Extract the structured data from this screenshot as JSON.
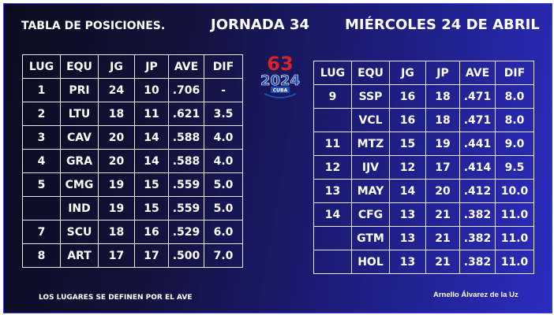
{
  "header": {
    "title": "TABLA DE POSICIONES.",
    "round": "JORNADA  34",
    "date": "MIÉRCOLES  24  DE ABRIL"
  },
  "logo": {
    "number": "63",
    "year": "2024",
    "country": "CUBA"
  },
  "columns": [
    "LUG",
    "EQU",
    "JG",
    "JP",
    "AVE",
    "DIF"
  ],
  "left_table": {
    "rows": [
      {
        "lug": "1",
        "equ": "PRI",
        "jg": "24",
        "jp": "10",
        "ave": ".706",
        "dif": "-"
      },
      {
        "lug": "2",
        "equ": "LTU",
        "jg": "18",
        "jp": "11",
        "ave": ".621",
        "dif": "3.5"
      },
      {
        "lug": "3",
        "equ": "CAV",
        "jg": "20",
        "jp": "14",
        "ave": ".588",
        "dif": "4.0"
      },
      {
        "lug": "4",
        "equ": "GRA",
        "jg": "20",
        "jp": "14",
        "ave": ".588",
        "dif": "4.0"
      },
      {
        "lug": "5",
        "equ": "CMG",
        "jg": "19",
        "jp": "15",
        "ave": ".559",
        "dif": "5.0"
      },
      {
        "lug": "",
        "equ": "IND",
        "jg": "19",
        "jp": "15",
        "ave": ".559",
        "dif": "5.0"
      },
      {
        "lug": "7",
        "equ": "SCU",
        "jg": "18",
        "jp": "16",
        "ave": ".529",
        "dif": "6.0"
      },
      {
        "lug": "8",
        "equ": "ART",
        "jg": "17",
        "jp": "17",
        "ave": ".500",
        "dif": "7.0"
      }
    ]
  },
  "right_table": {
    "rows": [
      {
        "lug": "9",
        "equ": "SSP",
        "jg": "16",
        "jp": "18",
        "ave": ".471",
        "dif": "8.0"
      },
      {
        "lug": "",
        "equ": "VCL",
        "jg": "16",
        "jp": "18",
        "ave": ".471",
        "dif": "8.0"
      },
      {
        "lug": "11",
        "equ": "MTZ",
        "jg": "15",
        "jp": "19",
        "ave": ".441",
        "dif": "9.0"
      },
      {
        "lug": "12",
        "equ": "IJV",
        "jg": "12",
        "jp": "17",
        "ave": ".414",
        "dif": "9.5"
      },
      {
        "lug": "13",
        "equ": "MAY",
        "jg": "14",
        "jp": "20",
        "ave": ".412",
        "dif": "10.0"
      },
      {
        "lug": "14",
        "equ": "CFG",
        "jg": "13",
        "jp": "21",
        "ave": ".382",
        "dif": "11.0"
      },
      {
        "lug": "",
        "equ": "GTM",
        "jg": "13",
        "jp": "21",
        "ave": ".382",
        "dif": "11.0"
      },
      {
        "lug": "",
        "equ": "HOL",
        "jg": "13",
        "jp": "21",
        "ave": ".382",
        "dif": "11.0"
      }
    ]
  },
  "footer": {
    "note": "LOS LUGARES SE DEFINEN POR EL  AVE",
    "author": "Arnello Álvarez de la Uz"
  },
  "colors": {
    "background_dark": "#0b0b1e",
    "background_blue": "#2c2cc0",
    "grid_lines": "#e9e9f4",
    "text": "#ffffff",
    "logo_red": "#d8232a",
    "logo_blue": "#1f4fb5"
  }
}
